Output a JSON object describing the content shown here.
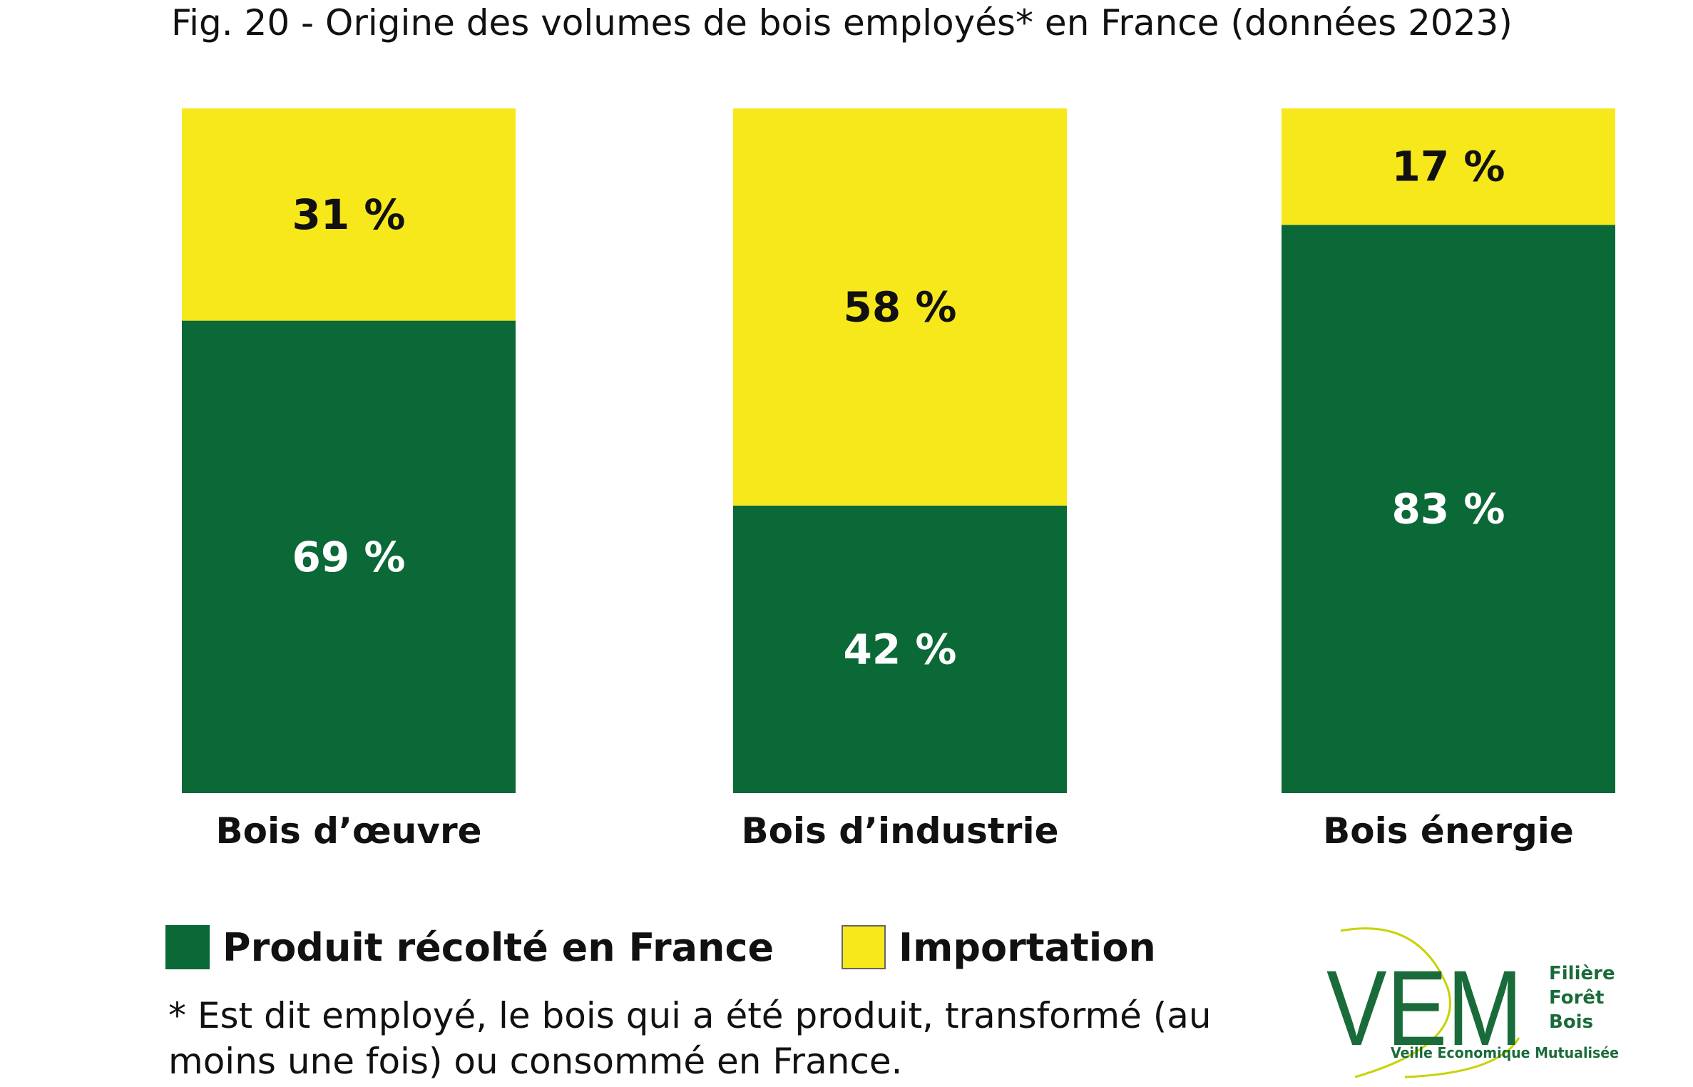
{
  "title": "Fig. 20 - Origine des volumes de bois employés* en France (données 2023)",
  "chart_data": {
    "type": "bar",
    "stacked": true,
    "categories": [
      "Bois d’œuvre",
      "Bois d’industrie",
      "Bois énergie"
    ],
    "series": [
      {
        "name": "Produit récolté en France",
        "color": "#0b6837",
        "label_color": "#ffffff",
        "values": [
          69,
          42,
          83
        ],
        "labels": [
          "69 %",
          "42 %",
          "83 %"
        ]
      },
      {
        "name": "Importation",
        "color": "#f7e81c",
        "label_color": "#111111",
        "values": [
          31,
          58,
          17
        ],
        "labels": [
          "31 %",
          "58 %",
          "17 %"
        ]
      }
    ],
    "ylim": [
      0,
      100
    ],
    "unit": "%",
    "legend_position": "bottom-left",
    "grid": false
  },
  "legend": [
    {
      "label": "Produit récolté en France",
      "color": "#0b6837"
    },
    {
      "label": "Importation",
      "color": "#f7e81c"
    }
  ],
  "footnote": "* Est dit employé, le bois qui a été produit, transformé (au moins une fois) ou consommé en France.",
  "logo": {
    "letters": "VEM",
    "side_lines": [
      "Filière",
      "Forêt",
      "Bois"
    ],
    "tagline": "Veille Economique Mutualisée",
    "color": "#1a6b3a",
    "accent_color": "#c9d200"
  }
}
